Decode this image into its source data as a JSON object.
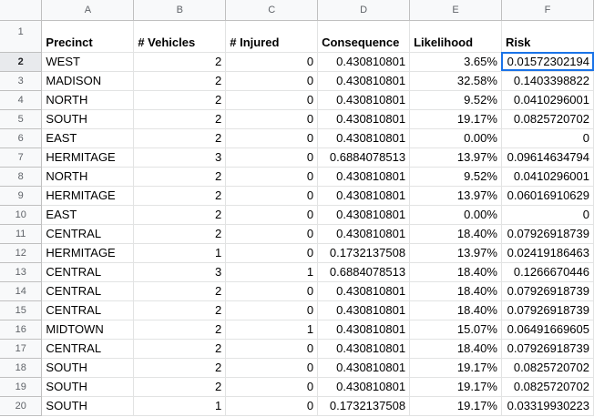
{
  "columns": [
    "A",
    "B",
    "C",
    "D",
    "E",
    "F"
  ],
  "headers": [
    "Precinct",
    "# Vehicles",
    "# Injured",
    "Consequence",
    "Likelihood",
    "Risk"
  ],
  "rows": [
    [
      "WEST",
      "2",
      "0",
      "0.430810801",
      "3.65%",
      "0.01572302194"
    ],
    [
      "MADISON",
      "2",
      "0",
      "0.430810801",
      "32.58%",
      "0.1403398822"
    ],
    [
      "NORTH",
      "2",
      "0",
      "0.430810801",
      "9.52%",
      "0.0410296001"
    ],
    [
      "SOUTH",
      "2",
      "0",
      "0.430810801",
      "19.17%",
      "0.0825720702"
    ],
    [
      "EAST",
      "2",
      "0",
      "0.430810801",
      "0.00%",
      "0"
    ],
    [
      "HERMITAGE",
      "3",
      "0",
      "0.6884078513",
      "13.97%",
      "0.09614634794"
    ],
    [
      "NORTH",
      "2",
      "0",
      "0.430810801",
      "9.52%",
      "0.0410296001"
    ],
    [
      "HERMITAGE",
      "2",
      "0",
      "0.430810801",
      "13.97%",
      "0.06016910629"
    ],
    [
      "EAST",
      "2",
      "0",
      "0.430810801",
      "0.00%",
      "0"
    ],
    [
      "CENTRAL",
      "2",
      "0",
      "0.430810801",
      "18.40%",
      "0.07926918739"
    ],
    [
      "HERMITAGE",
      "1",
      "0",
      "0.1732137508",
      "13.97%",
      "0.02419186463"
    ],
    [
      "CENTRAL",
      "3",
      "1",
      "0.6884078513",
      "18.40%",
      "0.1266670446"
    ],
    [
      "CENTRAL",
      "2",
      "0",
      "0.430810801",
      "18.40%",
      "0.07926918739"
    ],
    [
      "CENTRAL",
      "2",
      "0",
      "0.430810801",
      "18.40%",
      "0.07926918739"
    ],
    [
      "MIDTOWN",
      "2",
      "1",
      "0.430810801",
      "15.07%",
      "0.06491669605"
    ],
    [
      "CENTRAL",
      "2",
      "0",
      "0.430810801",
      "18.40%",
      "0.07926918739"
    ],
    [
      "SOUTH",
      "2",
      "0",
      "0.430810801",
      "19.17%",
      "0.0825720702"
    ],
    [
      "SOUTH",
      "2",
      "0",
      "0.430810801",
      "19.17%",
      "0.0825720702"
    ],
    [
      "SOUTH",
      "1",
      "0",
      "0.1732137508",
      "19.17%",
      "0.03319930223"
    ]
  ],
  "selected_cell": "F2",
  "selection_color": "#1a73e8"
}
